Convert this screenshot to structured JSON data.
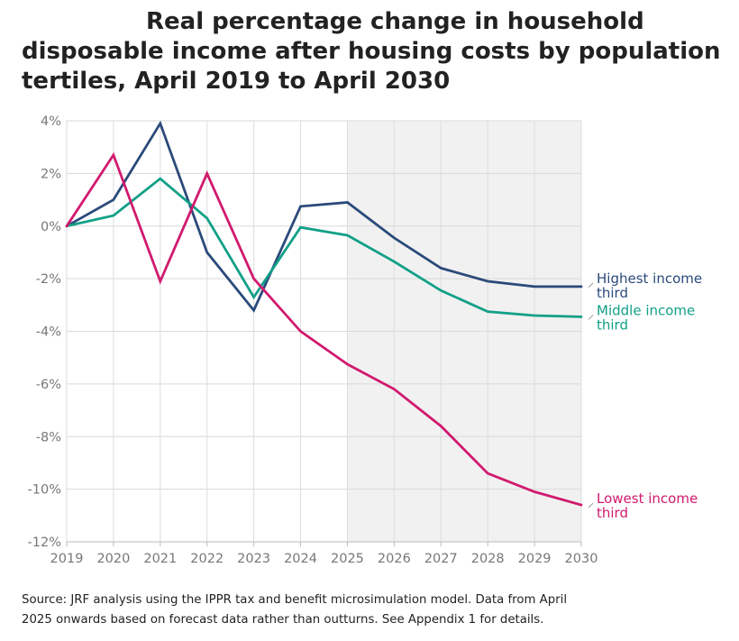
{
  "title_lines": [
    "Real percentage change in household",
    "disposable income after housing costs by population",
    "tertiles, April 2019 to April 2030"
  ],
  "source_lines": [
    "Source: JRF analysis using the IPPR tax and benefit microsimulation model. Data from April",
    "2025 onwards based on forecast data rather than outturns. See Appendix 1 for details."
  ],
  "chart_data": {
    "type": "line",
    "title": "Real percentage change in household disposable income after housing costs by population tertiles, April 2019 to April 2030",
    "xlabel": "",
    "ylabel": "",
    "x": [
      2019,
      2020,
      2021,
      2022,
      2023,
      2024,
      2025,
      2026,
      2027,
      2028,
      2029,
      2030
    ],
    "x_tick_labels": [
      "2019",
      "2020",
      "2021",
      "2022",
      "2023",
      "2024",
      "2025",
      "2026",
      "2027",
      "2028",
      "2029",
      "2030"
    ],
    "ylim": [
      -12,
      4
    ],
    "y_ticks": [
      4,
      2,
      0,
      -2,
      -4,
      -6,
      -8,
      -10,
      -12
    ],
    "y_tick_labels": [
      "4%",
      "2%",
      "0%",
      "-2%",
      "-4%",
      "-6%",
      "-8%",
      "-10%",
      "-12%"
    ],
    "grid": true,
    "shaded_region": {
      "from": 2025,
      "to": 2030,
      "color": "#f1f1f1"
    },
    "series": [
      {
        "name": "Highest income third",
        "label_lines": [
          "Highest income",
          "third"
        ],
        "color": "#2b4a7a",
        "values": [
          0.0,
          1.0,
          3.9,
          -1.0,
          -3.2,
          0.75,
          0.9,
          -0.45,
          -1.6,
          -2.1,
          -2.3,
          -2.3
        ]
      },
      {
        "name": "Middle income third",
        "label_lines": [
          "Middle income",
          "third"
        ],
        "color": "#12a087",
        "values": [
          0.0,
          0.4,
          1.8,
          0.3,
          -2.7,
          -0.05,
          -0.35,
          -1.35,
          -2.45,
          -3.25,
          -3.4,
          -3.45
        ]
      },
      {
        "name": "Lowest income third",
        "label_lines": [
          "Lowest income",
          "third"
        ],
        "color": "#d11a6e",
        "values": [
          0.0,
          2.7,
          -2.1,
          2.0,
          -2.0,
          -4.0,
          -5.25,
          -6.2,
          -7.6,
          -9.4,
          -10.1,
          -10.6
        ]
      }
    ]
  }
}
